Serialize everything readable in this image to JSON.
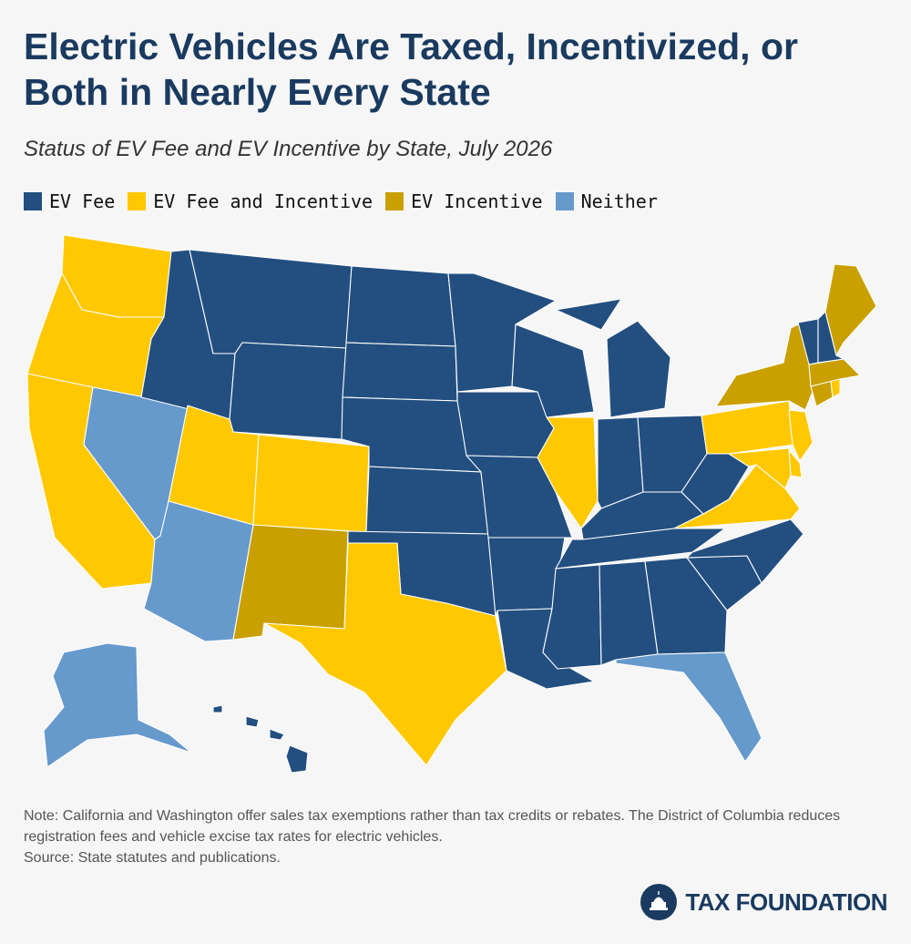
{
  "header": {
    "title": "Electric Vehicles Are Taxed, Incentivized, or Both in Nearly Every State",
    "subtitle": "Status of EV Fee and EV Incentive by State, July 2026"
  },
  "legend": [
    {
      "label": "EV Fee",
      "color": "#234f80"
    },
    {
      "label": "EV Fee and Incentive",
      "color": "#ffc800"
    },
    {
      "label": "EV Incentive",
      "color": "#c9a000"
    },
    {
      "label": "Neither",
      "color": "#6699cc"
    }
  ],
  "status_colors": {
    "fee": "#234f80",
    "both": "#ffc800",
    "incentive": "#c9a000",
    "neither": "#6699cc"
  },
  "states": {
    "WA": "both",
    "OR": "both",
    "CA": "both",
    "NV": "neither",
    "ID": "fee",
    "MT": "fee",
    "WY": "fee",
    "UT": "both",
    "AZ": "neither",
    "CO": "both",
    "NM": "incentive",
    "ND": "fee",
    "SD": "fee",
    "NE": "fee",
    "KS": "fee",
    "OK": "fee",
    "TX": "both",
    "MN": "fee",
    "IA": "fee",
    "MO": "fee",
    "AR": "fee",
    "LA": "fee",
    "WI": "fee",
    "IL": "both",
    "MI": "fee",
    "IN": "fee",
    "OH": "fee",
    "KY": "fee",
    "TN": "fee",
    "MS": "fee",
    "AL": "fee",
    "GA": "fee",
    "FL": "neither",
    "SC": "fee",
    "NC": "fee",
    "VA": "both",
    "WV": "fee",
    "PA": "both",
    "NY": "incentive",
    "NJ": "both",
    "DE": "both",
    "MD": "both",
    "CT": "incentive",
    "RI": "both",
    "MA": "incentive",
    "VT": "fee",
    "NH": "fee",
    "ME": "incentive",
    "AK": "neither",
    "HI": "fee"
  },
  "notes": {
    "note": "Note: California and Washington offer sales tax exemptions rather than tax credits or rebates. The District of Columbia reduces registration fees and vehicle excise tax rates for electric vehicles.",
    "source": "Source: State statutes and publications."
  },
  "logo": {
    "text": "TAX FOUNDATION",
    "icon": "capitol-dome-icon"
  }
}
